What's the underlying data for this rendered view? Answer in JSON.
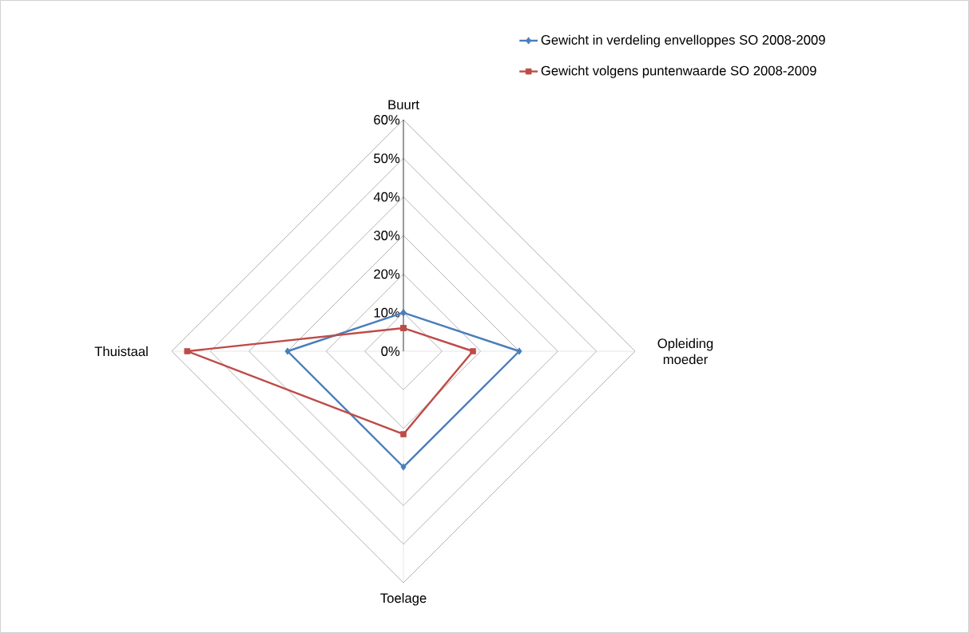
{
  "chart_data": {
    "type": "radar",
    "categories": [
      "Buurt",
      "Opleiding moeder",
      "Toelage",
      "Thuistaal"
    ],
    "series": [
      {
        "name": "Gewicht in verdeling envelloppes SO 2008-2009",
        "color": "#4a7ebb",
        "marker": "diamond",
        "values": [
          10,
          30,
          30,
          30
        ]
      },
      {
        "name": "Gewicht volgens puntenwaarde SO 2008-2009",
        "color": "#be4b48",
        "marker": "square",
        "values": [
          6,
          18,
          21.5,
          56
        ]
      }
    ],
    "ylim": [
      0,
      60
    ],
    "yticks": [
      {
        "value": 0,
        "label": "0%"
      },
      {
        "value": 10,
        "label": "10%"
      },
      {
        "value": 20,
        "label": "20%"
      },
      {
        "value": 30,
        "label": "30%"
      },
      {
        "value": 40,
        "label": "40%"
      },
      {
        "value": 50,
        "label": "50%"
      },
      {
        "value": 60,
        "label": "60%"
      }
    ],
    "legend": "top right",
    "grid": true
  }
}
